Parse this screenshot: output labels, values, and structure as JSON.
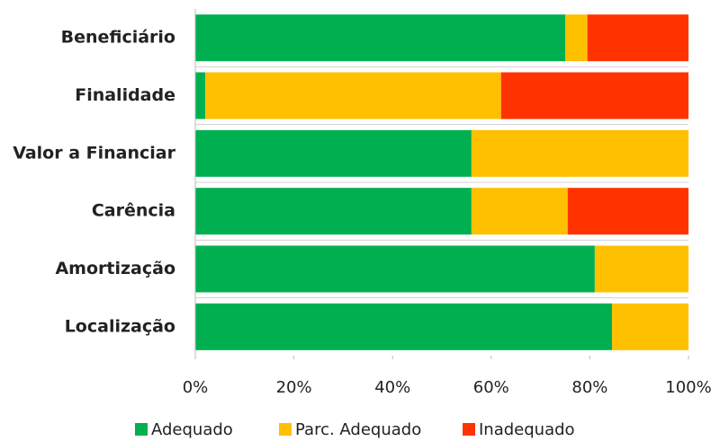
{
  "chart_data": {
    "type": "stacked_bar_horizontal",
    "categories": [
      "Beneficiário",
      "Finalidade",
      "Valor a Financiar",
      "Carência",
      "Amortização",
      "Localização"
    ],
    "series": [
      {
        "name": "Adequado",
        "color": "#00b050",
        "values": [
          75,
          2,
          56,
          56,
          81,
          84.5
        ]
      },
      {
        "name": "Parc. Adequado",
        "color": "#ffc000",
        "values": [
          4.5,
          60,
          44,
          19.5,
          19,
          15.5
        ]
      },
      {
        "name": "Inadequado",
        "color": "#ff3300",
        "values": [
          20.5,
          38,
          0,
          24.5,
          0,
          0
        ]
      }
    ],
    "xlim": [
      0,
      100
    ],
    "xticks": [
      {
        "value": 0,
        "label": "0%"
      },
      {
        "value": 20,
        "label": "20%"
      },
      {
        "value": 40,
        "label": "40%"
      },
      {
        "value": 60,
        "label": "60%"
      },
      {
        "value": 80,
        "label": "80%"
      },
      {
        "value": 100,
        "label": "100%"
      }
    ],
    "grid": false,
    "legend": "bottom"
  }
}
